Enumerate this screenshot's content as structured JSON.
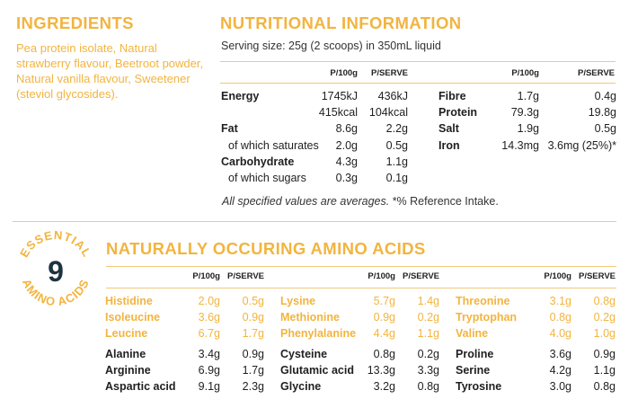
{
  "ingredients": {
    "title": "INGREDIENTS",
    "text": "Pea protein isolate, Natural strawberry flavour, Beetroot powder, Natural vanilla flavour, Sweetener (steviol glycosides)."
  },
  "nutrition": {
    "title": "NUTRITIONAL INFORMATION",
    "serving": "Serving size: 25g (2 scoops) in 350mL liquid",
    "col_per100": "P/100g",
    "col_perserve": "P/SERVE",
    "left_rows": [
      {
        "label": "Energy",
        "p100": "1745kJ",
        "pserve": "436kJ"
      },
      {
        "label": "",
        "p100": "415kcal",
        "pserve": "104kcal"
      },
      {
        "label": "Fat",
        "p100": "8.6g",
        "pserve": "2.2g"
      },
      {
        "label": "of which saturates",
        "p100": "2.0g",
        "pserve": "0.5g"
      },
      {
        "label": "Carbohydrate",
        "p100": "4.3g",
        "pserve": "1.1g"
      },
      {
        "label": "of which sugars",
        "p100": "0.3g",
        "pserve": "0.1g"
      }
    ],
    "right_rows": [
      {
        "label": "Fibre",
        "p100": "1.7g",
        "pserve": "0.4g"
      },
      {
        "label": "Protein",
        "p100": "79.3g",
        "pserve": "19.8g"
      },
      {
        "label": "Salt",
        "p100": "1.9g",
        "pserve": "0.5g"
      },
      {
        "label": "Iron",
        "p100": "14.3mg",
        "pserve": "3.6mg (25%)*"
      }
    ],
    "note_italic": "All specified values are averages.",
    "note_rest": " *% Reference Intake."
  },
  "amino": {
    "title": "NATURALLY OCCURING AMINO ACIDS",
    "badge_number": "9",
    "badge_top": "ESSENTIAL",
    "badge_bottom": "AMINO ACIDS",
    "col_per100": "P/100g",
    "col_perserve": "P/SERVE",
    "columns": [
      {
        "essential": [
          {
            "name": "Histidine",
            "p100": "2.0g",
            "pserve": "0.5g"
          },
          {
            "name": "Isoleucine",
            "p100": "3.6g",
            "pserve": "0.9g"
          },
          {
            "name": "Leucine",
            "p100": "6.7g",
            "pserve": "1.7g"
          }
        ],
        "other": [
          {
            "name": "Alanine",
            "p100": "3.4g",
            "pserve": "0.9g"
          },
          {
            "name": "Arginine",
            "p100": "6.9g",
            "pserve": "1.7g"
          },
          {
            "name": "Aspartic acid",
            "p100": "9.1g",
            "pserve": "2.3g"
          }
        ]
      },
      {
        "essential": [
          {
            "name": "Lysine",
            "p100": "5.7g",
            "pserve": "1.4g"
          },
          {
            "name": "Methionine",
            "p100": "0.9g",
            "pserve": "0.2g"
          },
          {
            "name": "Phenylalanine",
            "p100": "4.4g",
            "pserve": "1.1g"
          }
        ],
        "other": [
          {
            "name": "Cysteine",
            "p100": "0.8g",
            "pserve": "0.2g"
          },
          {
            "name": "Glutamic acid",
            "p100": "13.3g",
            "pserve": "3.3g"
          },
          {
            "name": "Glycine",
            "p100": "3.2g",
            "pserve": "0.8g"
          }
        ]
      },
      {
        "essential": [
          {
            "name": "Threonine",
            "p100": "3.1g",
            "pserve": "0.8g"
          },
          {
            "name": "Tryptophan",
            "p100": "0.8g",
            "pserve": "0.2g"
          },
          {
            "name": "Valine",
            "p100": "4.0g",
            "pserve": "1.0g"
          }
        ],
        "other": [
          {
            "name": "Proline",
            "p100": "3.6g",
            "pserve": "0.9g"
          },
          {
            "name": "Serine",
            "p100": "4.2g",
            "pserve": "1.1g"
          },
          {
            "name": "Tyrosine",
            "p100": "3.0g",
            "pserve": "0.8g"
          }
        ]
      }
    ]
  },
  "colors": {
    "accent": "#f2b43f",
    "rule": "#f2c97a",
    "text": "#1f1f1f",
    "badge_number": "#1d3340"
  }
}
